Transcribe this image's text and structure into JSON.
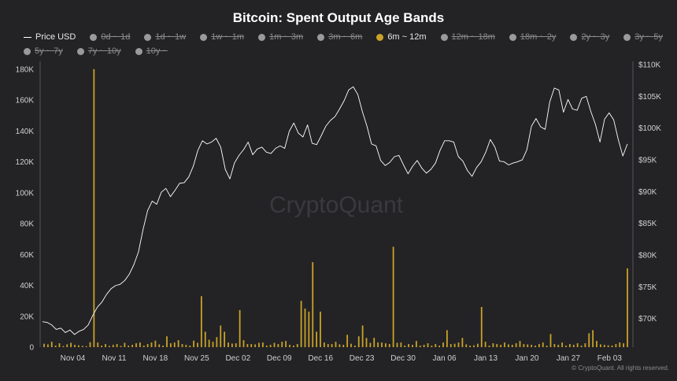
{
  "chart_data": {
    "type": "bar+line",
    "title": "Bitcoin: Spent Output Age Bands",
    "watermark": "CryptoQuant",
    "footer": "© CryptoQuant. All rights reserved.",
    "legend": [
      {
        "label": "Price USD",
        "active": true,
        "marker": "line",
        "color": "#ffffff"
      },
      {
        "label": "0d ~ 1d",
        "active": false,
        "color": "#9a9a9a"
      },
      {
        "label": "1d ~ 1w",
        "active": false,
        "color": "#9a9a9a"
      },
      {
        "label": "1w ~ 1m",
        "active": false,
        "color": "#9a9a9a"
      },
      {
        "label": "1m ~ 3m",
        "active": false,
        "color": "#9a9a9a"
      },
      {
        "label": "3m ~ 6m",
        "active": false,
        "color": "#9a9a9a"
      },
      {
        "label": "6m ~ 12m",
        "active": true,
        "color": "#c9a227"
      },
      {
        "label": "12m ~ 18m",
        "active": false,
        "color": "#9a9a9a"
      },
      {
        "label": "18m ~ 2y",
        "active": false,
        "color": "#9a9a9a"
      },
      {
        "label": "2y ~ 3y",
        "active": false,
        "color": "#9a9a9a"
      },
      {
        "label": "3y ~ 5y",
        "active": false,
        "color": "#9a9a9a"
      },
      {
        "label": "5y ~ 7y",
        "active": false,
        "color": "#9a9a9a"
      },
      {
        "label": "7y ~ 10y",
        "active": false,
        "color": "#9a9a9a"
      },
      {
        "label": "10y ~",
        "active": false,
        "color": "#9a9a9a"
      }
    ],
    "x_ticks": [
      "Nov 04",
      "Nov 11",
      "Nov 18",
      "Nov 25",
      "Dec 02",
      "Dec 09",
      "Dec 16",
      "Dec 23",
      "Dec 30",
      "Jan 06",
      "Jan 13",
      "Jan 20",
      "Jan 27",
      "Feb 03"
    ],
    "y_left": {
      "ticks": [
        "0",
        "20K",
        "40K",
        "60K",
        "80K",
        "100K",
        "120K",
        "140K",
        "160K",
        "180K"
      ],
      "range": [
        0,
        185000
      ]
    },
    "y_right": {
      "ticks": [
        "$70K",
        "$75K",
        "$80K",
        "$85K",
        "$90K",
        "$95K",
        "$100K",
        "$105K",
        "$110K"
      ],
      "range": [
        65500,
        110500
      ]
    },
    "date_range": [
      "Oct 29",
      "Feb 03"
    ],
    "series": [
      {
        "name": "Price USD",
        "axis": "right",
        "color": "#ffffff",
        "values": [
          69500,
          69400,
          69000,
          68300,
          68500,
          67800,
          68200,
          67500,
          68000,
          68300,
          69000,
          70500,
          71800,
          72600,
          73800,
          74700,
          75200,
          75400,
          76000,
          77000,
          78500,
          80500,
          84000,
          87000,
          88500,
          88000,
          89900,
          90500,
          89200,
          90200,
          91300,
          91400,
          92300,
          94000,
          96500,
          98000,
          97500,
          97800,
          98400,
          97000,
          93500,
          92000,
          94500,
          95700,
          96600,
          97800,
          95800,
          96700,
          97000,
          96200,
          96000,
          96800,
          97200,
          96800,
          99500,
          100800,
          99200,
          98600,
          100500,
          97600,
          97400,
          98800,
          100300,
          101200,
          101800,
          103000,
          104300,
          106000,
          106500,
          105300,
          102600,
          100300,
          97500,
          97200,
          94900,
          94100,
          94600,
          95500,
          95700,
          94200,
          92800,
          94000,
          94900,
          93700,
          92900,
          93500,
          94500,
          96500,
          98000,
          98000,
          97800,
          95500,
          94800,
          93300,
          92400,
          93800,
          94700,
          96200,
          98200,
          97000,
          94800,
          94700,
          94200,
          94500,
          94700,
          95000,
          96600,
          100300,
          101500,
          100200,
          99800,
          104100,
          106300,
          106000,
          102500,
          104500,
          103000,
          102800,
          104700,
          105000,
          102600,
          100600,
          97800,
          101400,
          102400,
          101300,
          98200,
          95600,
          97500
        ]
      },
      {
        "name": "6m ~ 12m",
        "axis": "left",
        "color": "#c9a227",
        "values": [
          2200,
          1800,
          3500,
          1000,
          2500,
          700,
          1800,
          2800,
          1500,
          1200,
          800,
          600,
          3200,
          180000,
          3000,
          1000,
          2000,
          800,
          1500,
          2000,
          800,
          2800,
          1000,
          1500,
          2500,
          3000,
          1000,
          2000,
          3000,
          4200,
          1800,
          1000,
          7000,
          2500,
          3000,
          4500,
          2000,
          1500,
          1000,
          4200,
          2800,
          33000,
          10000,
          4800,
          3500,
          6500,
          14000,
          10000,
          3000,
          2300,
          2500,
          24000,
          4500,
          2000,
          2000,
          1800,
          2800,
          3000,
          1000,
          1500,
          2800,
          2000,
          3500,
          4000,
          1500,
          1000,
          2000,
          30000,
          25000,
          23000,
          55000,
          10000,
          23000,
          3000,
          2000,
          2000,
          3500,
          1800,
          1500,
          8000,
          2200,
          1000,
          7000,
          14000,
          6000,
          2800,
          6000,
          3000,
          3000,
          2500,
          2000,
          65000,
          2800,
          3000,
          1000,
          2000,
          1500,
          4000,
          1000,
          1500,
          2500,
          1000,
          2000,
          1000,
          3000,
          11000,
          2000,
          2200,
          3000,
          6000,
          1800,
          1000,
          1200,
          2200,
          26000,
          3500,
          1000,
          2500,
          2000,
          1500,
          3000,
          1800,
          1500,
          2500,
          4000,
          2000,
          1800,
          1500,
          1000,
          2000,
          3000,
          1000,
          8500,
          2000,
          1500,
          3000,
          1000,
          2000,
          1500,
          2500,
          1000,
          2500,
          9000,
          11000,
          4000,
          1800,
          1500,
          1200,
          1000,
          2000,
          3000,
          2500,
          51000
        ]
      }
    ]
  }
}
